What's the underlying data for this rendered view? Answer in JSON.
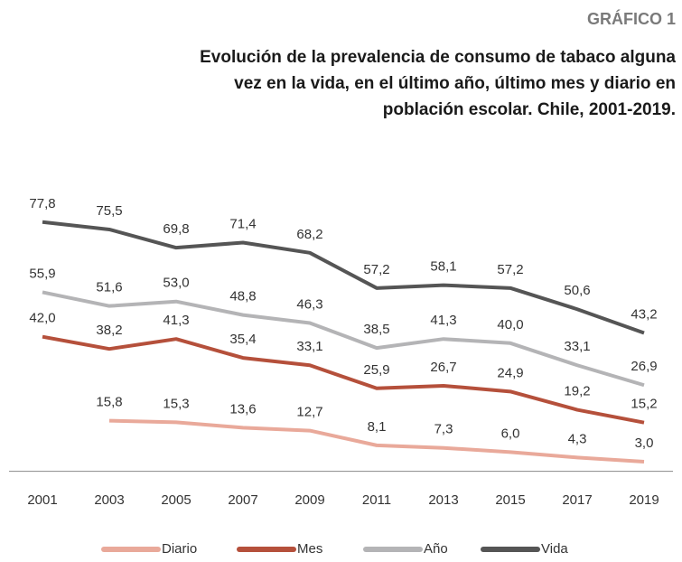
{
  "chart_data": {
    "type": "line",
    "label": "GRÁFICO 1",
    "title": [
      "Evolución de la prevalencia de consumo de tabaco alguna",
      "vez en la vida, en el último año, último mes y diario en",
      "población escolar. Chile, 2001-2019."
    ],
    "categories": [
      "2001",
      "2003",
      "2005",
      "2007",
      "2009",
      "2011",
      "2013",
      "2015",
      "2017",
      "2019"
    ],
    "ylim": [
      0,
      80
    ],
    "legend": "bottom",
    "series": [
      {
        "name": "Diario",
        "color": "#e9a99a",
        "values": [
          null,
          15.8,
          15.3,
          13.6,
          12.7,
          8.1,
          7.3,
          6.0,
          4.3,
          3.0
        ],
        "value_labels": [
          null,
          "15,8",
          "15,3",
          "13,6",
          "12,7",
          "8,1",
          "7,3",
          "6,0",
          "4,3",
          "3,0"
        ]
      },
      {
        "name": "Mes",
        "color": "#b5503b",
        "values": [
          42.0,
          38.2,
          41.3,
          35.4,
          33.1,
          25.9,
          26.7,
          24.9,
          19.2,
          15.2
        ],
        "value_labels": [
          "42,0",
          "38,2",
          "41,3",
          "35,4",
          "33,1",
          "25,9",
          "26,7",
          "24,9",
          "19,2",
          "15,2"
        ]
      },
      {
        "name": "Año",
        "color": "#b4b4b6",
        "values": [
          55.9,
          51.6,
          53.0,
          48.8,
          46.3,
          38.5,
          41.3,
          40.0,
          33.1,
          26.9
        ],
        "value_labels": [
          "55,9",
          "51,6",
          "53,0",
          "48,8",
          "46,3",
          "38,5",
          "41,3",
          "40,0",
          "33,1",
          "26,9"
        ]
      },
      {
        "name": "Vida",
        "color": "#555555",
        "values": [
          77.8,
          75.5,
          69.8,
          71.4,
          68.2,
          57.2,
          58.1,
          57.2,
          50.6,
          43.2
        ],
        "value_labels": [
          "77,8",
          "75,5",
          "69,8",
          "71,4",
          "68,2",
          "57,2",
          "58,1",
          "57,2",
          "50,6",
          "43,2"
        ]
      }
    ]
  }
}
